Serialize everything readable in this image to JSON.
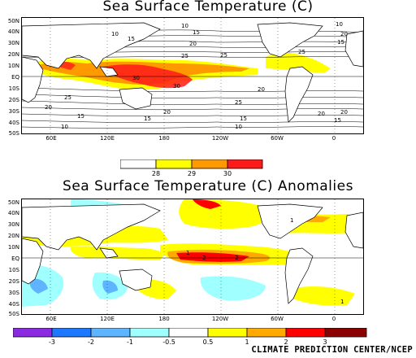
{
  "panel1": {
    "title": "Sea Surface Temperature (C)",
    "lat_labels": [
      "50N",
      "40N",
      "30N",
      "20N",
      "10N",
      "EQ",
      "10S",
      "20S",
      "30S",
      "40S",
      "50S"
    ],
    "lon_labels": [
      "60E",
      "120E",
      "180",
      "120W",
      "60W",
      "0"
    ],
    "contour_labels": [
      "10",
      "15",
      "20",
      "25",
      "25",
      "10",
      "25",
      "20",
      "15",
      "10",
      "15",
      "30",
      "30",
      "25",
      "20",
      "20",
      "25",
      "20",
      "15",
      "15",
      "10",
      "20",
      "15",
      "20",
      "10",
      "15"
    ],
    "colorbar": {
      "colors": [
        "#ffffff",
        "#ffff00",
        "#ff9900",
        "#ff1a1a"
      ],
      "labels": [
        "28",
        "29",
        "30"
      ]
    }
  },
  "panel2": {
    "title": "Sea Surface Temperature (C) Anomalies",
    "lat_labels": [
      "50N",
      "40N",
      "30N",
      "20N",
      "10N",
      "EQ",
      "10S",
      "20S",
      "30S",
      "40S",
      "50S"
    ],
    "lon_labels": [
      "60E",
      "120E",
      "180",
      "120W",
      "60W",
      "0"
    ],
    "contour_labels": [
      "1",
      "2",
      "2",
      "1",
      "1"
    ],
    "colorbar": {
      "colors": [
        "#8a2be2",
        "#1e78ff",
        "#5fb4ff",
        "#a0ffff",
        "#ffffff",
        "#ffff00",
        "#ffaa00",
        "#ff0000",
        "#8b0000"
      ],
      "labels": [
        "-3",
        "-2",
        "-1",
        "-0.5",
        "0.5",
        "1",
        "2",
        "3"
      ]
    }
  },
  "credit": "CLIMATE PREDICTION CENTER/NCEP",
  "colors": {
    "land": "#ffffff",
    "coast": "#000000",
    "grid": "#000000"
  }
}
